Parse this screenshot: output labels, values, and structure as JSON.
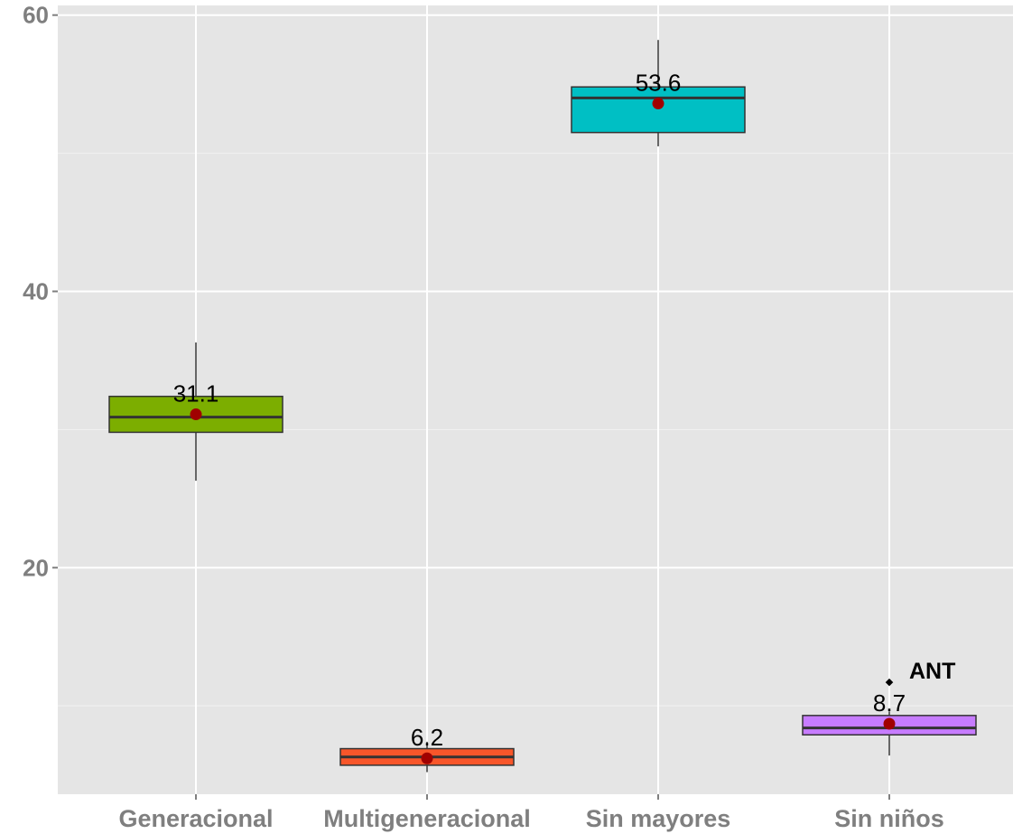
{
  "chart_data": {
    "type": "box",
    "categories": [
      "Generacional",
      "Multigeneracional",
      "Sin mayores",
      "Sin niños"
    ],
    "boxes": [
      {
        "category": "Generacional",
        "min": 26.3,
        "q1": 29.8,
        "median": 30.9,
        "q3": 32.4,
        "max": 36.3,
        "mean": 31.1,
        "label": "31.1",
        "fill": "#7cae00",
        "outliers": []
      },
      {
        "category": "Multigeneracional",
        "min": 5.2,
        "q1": 5.7,
        "median": 6.3,
        "q3": 6.9,
        "max": 7.4,
        "mean": 6.2,
        "label": "6.2",
        "fill": "#f8562a",
        "outliers": []
      },
      {
        "category": "Sin mayores",
        "min": 50.5,
        "q1": 51.5,
        "median": 54.0,
        "q3": 54.8,
        "max": 58.2,
        "mean": 53.6,
        "label": "53.6",
        "fill": "#00bfc4",
        "outliers": []
      },
      {
        "category": "Sin niños",
        "min": 6.4,
        "q1": 7.9,
        "median": 8.4,
        "q3": 9.3,
        "max": 9.6,
        "mean": 8.7,
        "label": "8.7",
        "fill": "#c77cff",
        "outliers": [
          {
            "value": 11.7,
            "label": "ANT"
          }
        ]
      }
    ],
    "y_ticks": [
      20,
      40,
      60
    ],
    "y_tick_labels": [
      "20",
      "40",
      "60"
    ],
    "ylim": [
      3.6,
      60.7
    ],
    "grid": true,
    "panel_color": "#e5e5e5",
    "grid_color": "#ffffff",
    "mean_color": "#a00000"
  }
}
